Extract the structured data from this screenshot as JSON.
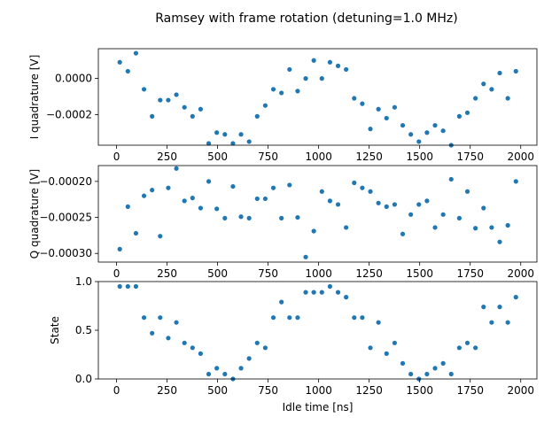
{
  "figure": {
    "title": "Ramsey with frame rotation (detuning=1.0 MHz)",
    "marker_color": "#1f77b4"
  },
  "chart_data": [
    {
      "type": "scatter",
      "xlabel": "",
      "ylabel": "I quadrature [V]",
      "xlim": [
        -90,
        2080
      ],
      "ylim": [
        -0.00037,
        0.000165
      ],
      "xticks": [
        0,
        250,
        500,
        750,
        1000,
        1250,
        1500,
        1750,
        2000
      ],
      "xtick_labels": [
        "0",
        "250",
        "500",
        "750",
        "1000",
        "1250",
        "1500",
        "1750",
        "2000"
      ],
      "yticks": [
        0.0,
        -0.0002
      ],
      "ytick_labels": [
        "0.0000",
        "−0.0002"
      ],
      "grid": false,
      "x": [
        16,
        56,
        96,
        136,
        176,
        216,
        256,
        296,
        336,
        376,
        416,
        456,
        496,
        536,
        576,
        616,
        656,
        696,
        736,
        776,
        816,
        856,
        896,
        936,
        976,
        1016,
        1056,
        1096,
        1136,
        1176,
        1216,
        1256,
        1296,
        1336,
        1376,
        1416,
        1456,
        1496,
        1536,
        1576,
        1616,
        1656,
        1696,
        1736,
        1776,
        1816,
        1856,
        1896,
        1936,
        1976
      ],
      "y": [
        9e-05,
        4e-05,
        0.00014,
        -6e-05,
        -0.00021,
        -0.00012,
        -0.00012,
        -9e-05,
        -0.00016,
        -0.00021,
        -0.00017,
        -0.00036,
        -0.0003,
        -0.00031,
        -0.00036,
        -0.00031,
        -0.00035,
        -0.00021,
        -0.00015,
        -6e-05,
        -8e-05,
        5e-05,
        -7e-05,
        0.0,
        0.0001,
        0.0,
        9e-05,
        7e-05,
        5e-05,
        -0.00011,
        -0.00014,
        -0.00028,
        -0.00017,
        -0.00022,
        -0.00016,
        -0.00026,
        -0.00031,
        -0.00035,
        -0.0003,
        -0.00026,
        -0.00029,
        -0.00037,
        -0.00021,
        -0.00019,
        -0.00011,
        -3e-05,
        -6e-05,
        3e-05,
        -0.00011,
        4e-05
      ]
    },
    {
      "type": "scatter",
      "xlabel": "",
      "ylabel": "Q quadrature [V]",
      "xlim": [
        -90,
        2080
      ],
      "ylim": [
        -0.000312,
        -0.000178
      ],
      "xticks": [
        0,
        250,
        500,
        750,
        1000,
        1250,
        1500,
        1750,
        2000
      ],
      "xtick_labels": [
        "0",
        "250",
        "500",
        "750",
        "1000",
        "1250",
        "1500",
        "1750",
        "2000"
      ],
      "yticks": [
        -0.0002,
        -0.00025,
        -0.0003
      ],
      "ytick_labels": [
        "−0.00020",
        "−0.00025",
        "−0.00030"
      ],
      "grid": false,
      "x": [
        16,
        56,
        96,
        136,
        176,
        216,
        256,
        296,
        336,
        376,
        416,
        456,
        496,
        536,
        576,
        616,
        656,
        696,
        736,
        776,
        816,
        856,
        896,
        936,
        976,
        1016,
        1056,
        1096,
        1136,
        1176,
        1216,
        1256,
        1296,
        1336,
        1376,
        1416,
        1456,
        1496,
        1536,
        1576,
        1616,
        1656,
        1696,
        1736,
        1776,
        1816,
        1856,
        1896,
        1936,
        1976
      ],
      "y": [
        -0.000294,
        -0.000235,
        -0.000272,
        -0.00022,
        -0.000212,
        -0.000276,
        -0.000209,
        -0.000182,
        -0.000227,
        -0.000223,
        -0.000237,
        -0.0002,
        -0.000238,
        -0.000251,
        -0.000207,
        -0.000249,
        -0.000251,
        -0.000224,
        -0.000224,
        -0.000209,
        -0.000251,
        -0.000205,
        -0.00025,
        -0.000305,
        -0.000269,
        -0.000214,
        -0.000227,
        -0.000232,
        -0.000264,
        -0.000202,
        -0.000209,
        -0.000214,
        -0.00023,
        -0.000235,
        -0.000232,
        -0.000273,
        -0.000246,
        -0.000232,
        -0.000227,
        -0.000264,
        -0.000246,
        -0.000197,
        -0.000251,
        -0.000214,
        -0.000265,
        -0.000237,
        -0.000264,
        -0.000284,
        -0.000261,
        -0.0002
      ]
    },
    {
      "type": "scatter",
      "xlabel": "Idle time [ns]",
      "ylabel": "State",
      "xlim": [
        -90,
        2080
      ],
      "ylim": [
        0.0,
        1.0
      ],
      "xticks": [
        0,
        250,
        500,
        750,
        1000,
        1250,
        1500,
        1750,
        2000
      ],
      "xtick_labels": [
        "0",
        "250",
        "500",
        "750",
        "1000",
        "1250",
        "1500",
        "1750",
        "2000"
      ],
      "yticks": [
        0.0,
        0.5,
        1.0
      ],
      "ytick_labels": [
        "0.0",
        "0.5",
        "1.0"
      ],
      "grid": false,
      "x": [
        16,
        56,
        96,
        136,
        176,
        216,
        256,
        296,
        336,
        376,
        416,
        456,
        496,
        536,
        576,
        616,
        656,
        696,
        736,
        776,
        816,
        856,
        896,
        936,
        976,
        1016,
        1056,
        1096,
        1136,
        1176,
        1216,
        1256,
        1296,
        1336,
        1376,
        1416,
        1456,
        1496,
        1536,
        1576,
        1616,
        1656,
        1696,
        1736,
        1776,
        1816,
        1856,
        1896,
        1936,
        1976
      ],
      "y": [
        0.95,
        0.95,
        0.95,
        0.63,
        0.47,
        0.63,
        0.42,
        0.58,
        0.37,
        0.32,
        0.26,
        0.05,
        0.11,
        0.05,
        0.0,
        0.11,
        0.21,
        0.37,
        0.32,
        0.63,
        0.79,
        0.63,
        0.63,
        0.89,
        0.89,
        0.89,
        0.95,
        0.89,
        0.84,
        0.63,
        0.63,
        0.32,
        0.58,
        0.26,
        0.37,
        0.16,
        0.05,
        0.0,
        0.05,
        0.11,
        0.16,
        0.05,
        0.32,
        0.37,
        0.32,
        0.74,
        0.58,
        0.74,
        0.58,
        0.84
      ]
    }
  ]
}
